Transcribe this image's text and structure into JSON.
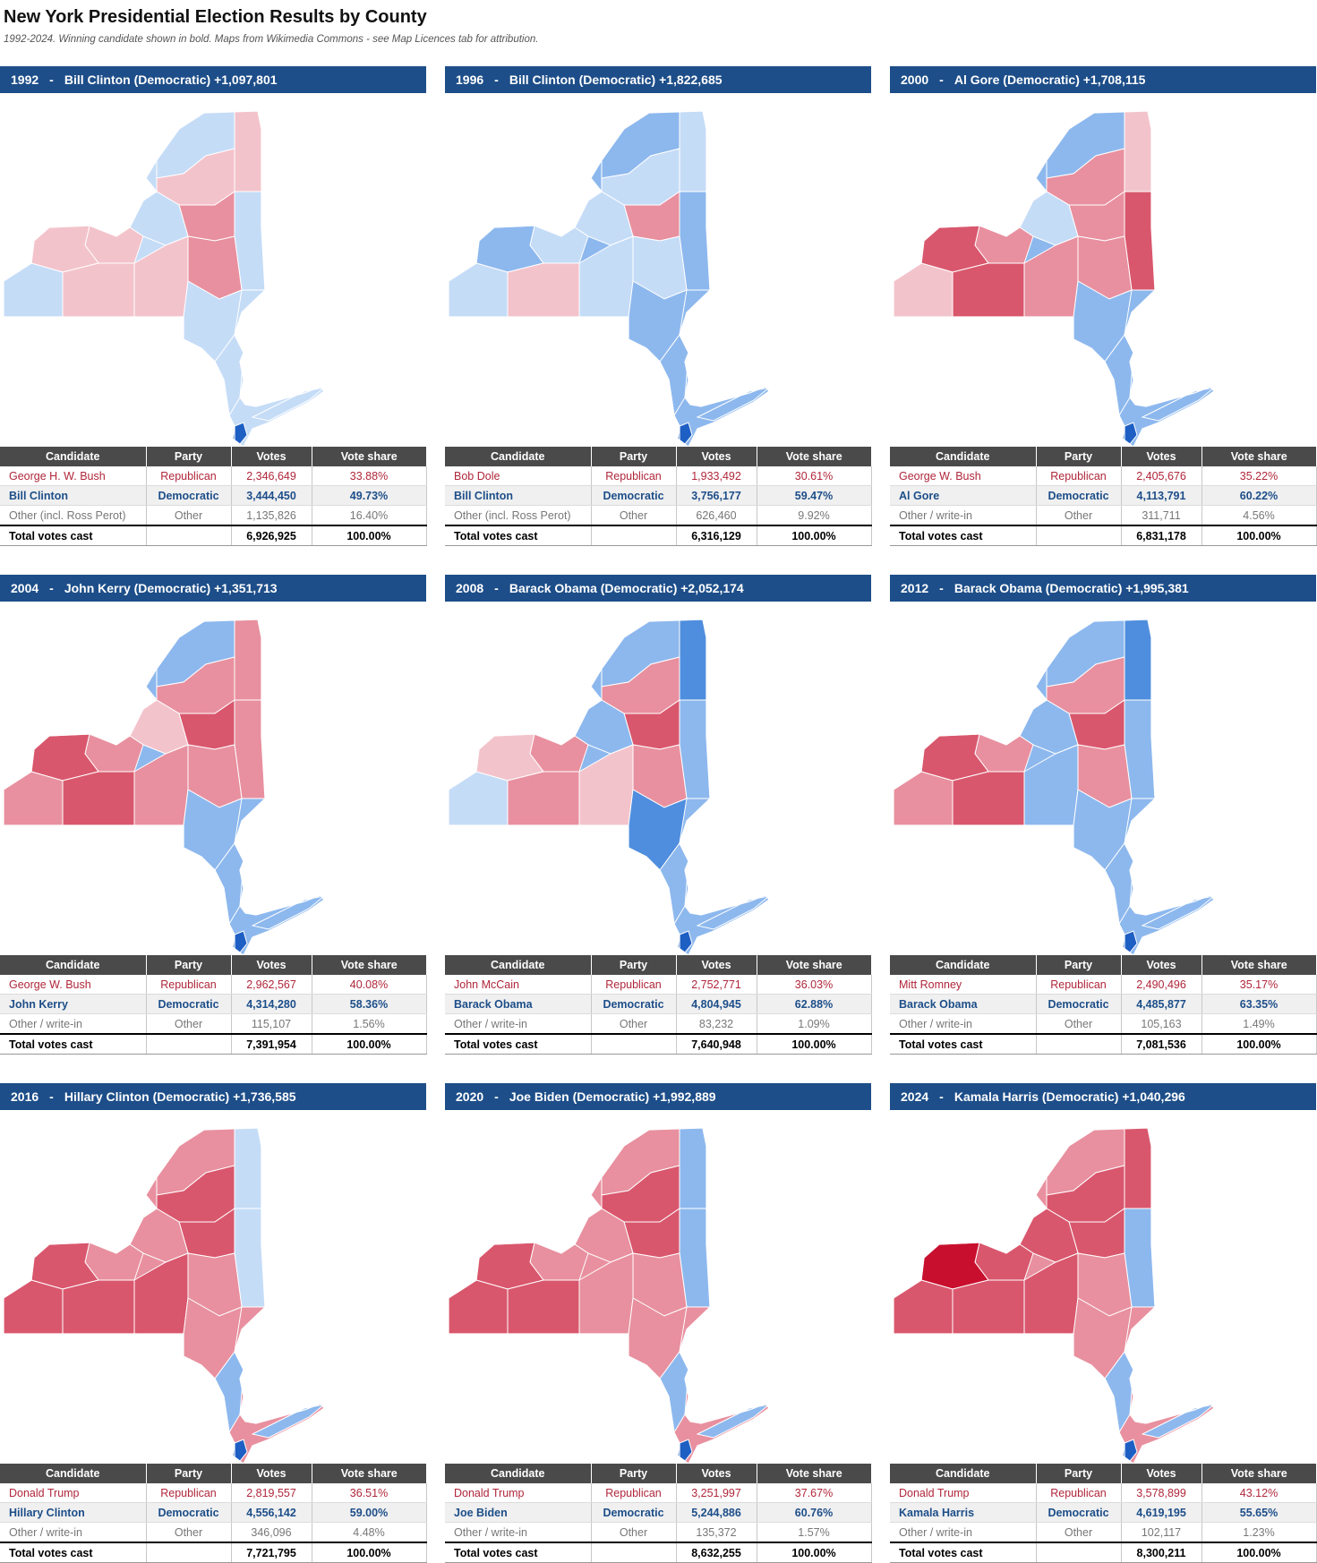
{
  "header": {
    "title": "New York Presidential Election Results by County",
    "subtitle": "1992-2024. Winning candidate shown in bold. Maps from Wikimedia Commons - see Map Licences tab for attribution."
  },
  "table_headers": [
    "Candidate",
    "Party",
    "Votes",
    "Vote share"
  ],
  "colors": {
    "header_bar": "#1d4e89",
    "table_header": "#4a4a4a",
    "republican_text": "#b0263a",
    "democratic_text": "#1d4e89"
  },
  "panels": [
    {
      "year": "1992",
      "headline": "Bill Clinton (Democratic) +1,097,801",
      "rows": [
        {
          "candidate": "George H. W. Bush",
          "party": "Republican",
          "votes": "2,346,649",
          "share": "33.88%"
        },
        {
          "candidate": "Bill Clinton",
          "party": "Democratic",
          "votes": "3,444,450",
          "share": "49.73%"
        },
        {
          "candidate": "Other (incl. Ross Perot)",
          "party": "Other",
          "votes": "1,135,826",
          "share": "16.40%"
        },
        {
          "candidate": "Total votes cast",
          "party": "",
          "votes": "6,926,925",
          "share": "100.00%"
        }
      ]
    },
    {
      "year": "1996",
      "headline": "Bill Clinton (Democratic) +1,822,685",
      "rows": [
        {
          "candidate": "Bob Dole",
          "party": "Republican",
          "votes": "1,933,492",
          "share": "30.61%"
        },
        {
          "candidate": "Bill Clinton",
          "party": "Democratic",
          "votes": "3,756,177",
          "share": "59.47%"
        },
        {
          "candidate": "Other (incl. Ross Perot)",
          "party": "Other",
          "votes": "626,460",
          "share": "9.92%"
        },
        {
          "candidate": "Total votes cast",
          "party": "",
          "votes": "6,316,129",
          "share": "100.00%"
        }
      ]
    },
    {
      "year": "2000",
      "headline": "Al Gore (Democratic) +1,708,115",
      "rows": [
        {
          "candidate": "George W. Bush",
          "party": "Republican",
          "votes": "2,405,676",
          "share": "35.22%"
        },
        {
          "candidate": "Al Gore",
          "party": "Democratic",
          "votes": "4,113,791",
          "share": "60.22%"
        },
        {
          "candidate": "Other / write-in",
          "party": "Other",
          "votes": "311,711",
          "share": "4.56%"
        },
        {
          "candidate": "Total votes cast",
          "party": "",
          "votes": "6,831,178",
          "share": "100.00%"
        }
      ]
    },
    {
      "year": "2004",
      "headline": "John Kerry (Democratic) +1,351,713",
      "rows": [
        {
          "candidate": "George W. Bush",
          "party": "Republican",
          "votes": "2,962,567",
          "share": "40.08%"
        },
        {
          "candidate": "John Kerry",
          "party": "Democratic",
          "votes": "4,314,280",
          "share": "58.36%"
        },
        {
          "candidate": "Other / write-in",
          "party": "Other",
          "votes": "115,107",
          "share": "1.56%"
        },
        {
          "candidate": "Total votes cast",
          "party": "",
          "votes": "7,391,954",
          "share": "100.00%"
        }
      ]
    },
    {
      "year": "2008",
      "headline": "Barack Obama (Democratic) +2,052,174",
      "rows": [
        {
          "candidate": "John McCain",
          "party": "Republican",
          "votes": "2,752,771",
          "share": "36.03%"
        },
        {
          "candidate": "Barack Obama",
          "party": "Democratic",
          "votes": "4,804,945",
          "share": "62.88%"
        },
        {
          "candidate": "Other / write-in",
          "party": "Other",
          "votes": "83,232",
          "share": "1.09%"
        },
        {
          "candidate": "Total votes cast",
          "party": "",
          "votes": "7,640,948",
          "share": "100.00%"
        }
      ]
    },
    {
      "year": "2012",
      "headline": "Barack Obama (Democratic) +1,995,381",
      "rows": [
        {
          "candidate": "Mitt Romney",
          "party": "Republican",
          "votes": "2,490,496",
          "share": "35.17%"
        },
        {
          "candidate": "Barack Obama",
          "party": "Democratic",
          "votes": "4,485,877",
          "share": "63.35%"
        },
        {
          "candidate": "Other / write-in",
          "party": "Other",
          "votes": "105,163",
          "share": "1.49%"
        },
        {
          "candidate": "Total votes cast",
          "party": "",
          "votes": "7,081,536",
          "share": "100.00%"
        }
      ]
    },
    {
      "year": "2016",
      "headline": "Hillary Clinton (Democratic) +1,736,585",
      "rows": [
        {
          "candidate": "Donald Trump",
          "party": "Republican",
          "votes": "2,819,557",
          "share": "36.51%"
        },
        {
          "candidate": "Hillary Clinton",
          "party": "Democratic",
          "votes": "4,556,142",
          "share": "59.00%"
        },
        {
          "candidate": "Other / write-in",
          "party": "Other",
          "votes": "346,096",
          "share": "4.48%"
        },
        {
          "candidate": "Total votes cast",
          "party": "",
          "votes": "7,721,795",
          "share": "100.00%"
        }
      ]
    },
    {
      "year": "2020",
      "headline": "Joe Biden (Democratic) +1,992,889",
      "rows": [
        {
          "candidate": "Donald Trump",
          "party": "Republican",
          "votes": "3,251,997",
          "share": "37.67%"
        },
        {
          "candidate": "Joe Biden",
          "party": "Democratic",
          "votes": "5,244,886",
          "share": "60.76%"
        },
        {
          "candidate": "Other / write-in",
          "party": "Other",
          "votes": "135,372",
          "share": "1.57%"
        },
        {
          "candidate": "Total votes cast",
          "party": "",
          "votes": "8,632,255",
          "share": "100.00%"
        }
      ]
    },
    {
      "year": "2024",
      "headline": "Kamala Harris (Democratic) +1,040,296",
      "rows": [
        {
          "candidate": "Donald Trump",
          "party": "Republican",
          "votes": "3,578,899",
          "share": "43.12%"
        },
        {
          "candidate": "Kamala Harris",
          "party": "Democratic",
          "votes": "4,619,195",
          "share": "55.65%"
        },
        {
          "candidate": "Other / write-in",
          "party": "Other",
          "votes": "102,117",
          "share": "1.23%"
        },
        {
          "candidate": "Total votes cast",
          "party": "",
          "votes": "8,300,211",
          "share": "100.00%"
        }
      ]
    }
  ]
}
